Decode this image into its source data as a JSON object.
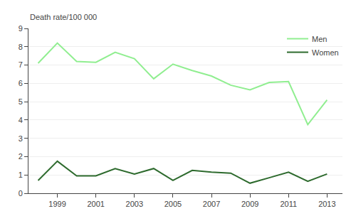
{
  "chart_data": {
    "type": "line",
    "ylabel": "Death rate/100 000",
    "x": [
      1998,
      1999,
      2000,
      2001,
      2002,
      2003,
      2004,
      2005,
      2006,
      2007,
      2008,
      2009,
      2010,
      2011,
      2012,
      2013
    ],
    "series": [
      {
        "name": "Men",
        "color": "#90EE90",
        "values": [
          7.1,
          8.2,
          7.2,
          7.15,
          7.7,
          7.35,
          6.25,
          7.05,
          6.7,
          6.4,
          5.9,
          5.65,
          6.05,
          6.1,
          3.75,
          5.1
        ]
      },
      {
        "name": "Women",
        "color": "#2d6a2d",
        "values": [
          0.7,
          1.75,
          0.95,
          0.95,
          1.35,
          1.05,
          1.35,
          0.7,
          1.25,
          1.15,
          1.1,
          0.55,
          0.85,
          1.15,
          0.65,
          1.05
        ]
      }
    ],
    "xlim": [
      1997.5,
      2013.8
    ],
    "xticks": [
      1999,
      2001,
      2003,
      2005,
      2007,
      2009,
      2011,
      2013
    ],
    "ylim": [
      0,
      9
    ],
    "yticks": [
      0,
      1,
      2,
      3,
      4,
      5,
      6,
      7,
      8,
      9
    ],
    "grid": true,
    "legend": "upper right"
  }
}
